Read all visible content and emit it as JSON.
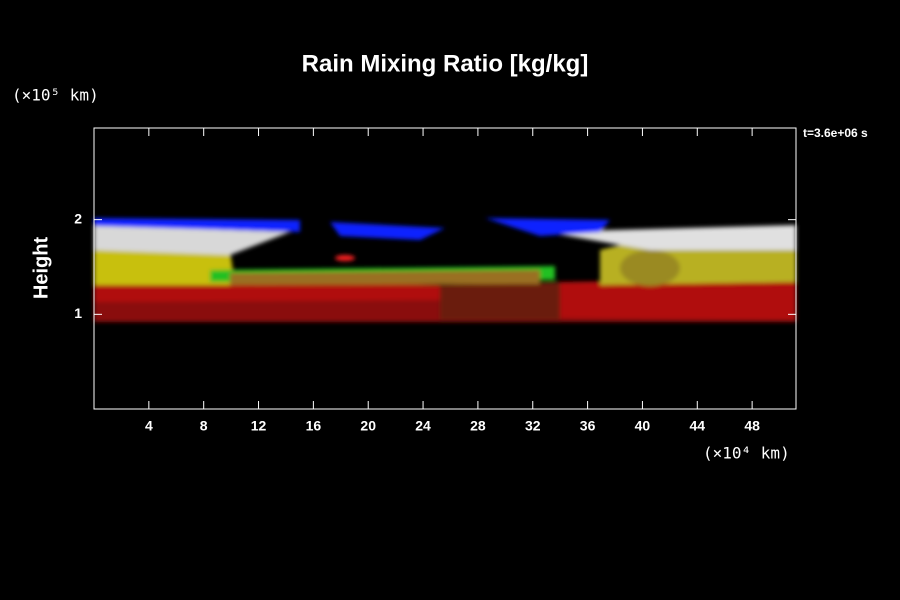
{
  "chart_data": {
    "type": "field",
    "title": "Rain Mixing Ratio [kg/kg]",
    "y_label": "Height",
    "y_unit": "(×10⁵ km)",
    "x_unit": "(×10⁴ km)",
    "annotation": "t=3.6e+06 s",
    "xlim": [
      0,
      51.2
    ],
    "xticks": [
      4,
      8,
      12,
      16,
      20,
      24,
      28,
      32,
      36,
      40,
      44,
      48
    ],
    "ylim": [
      0,
      3
    ],
    "yticks": [
      1,
      2
    ]
  }
}
